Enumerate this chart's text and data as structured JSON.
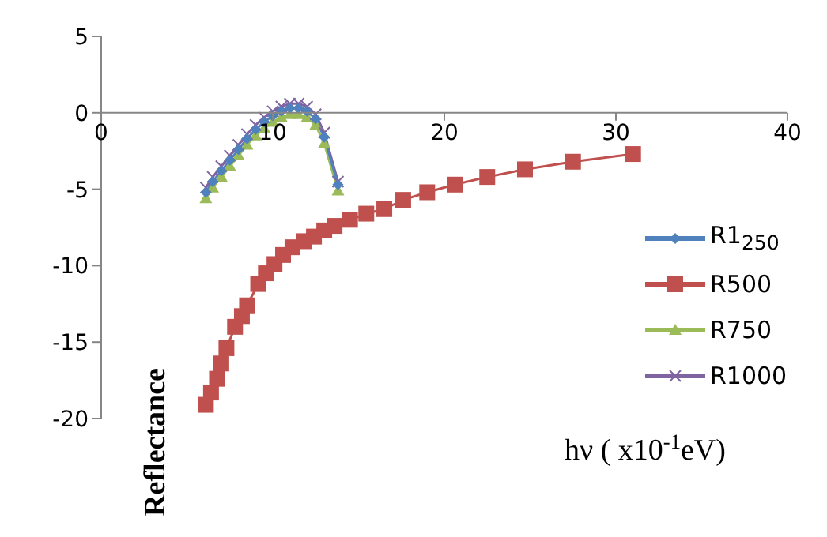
{
  "chart_data": {
    "type": "line",
    "xlabel": "hν ( x10$^{-1}$eV)",
    "ylabel": "Reflectance",
    "xlim": [
      0,
      40
    ],
    "xticks": [
      0,
      10,
      20,
      30,
      40
    ],
    "ylim": [
      -20,
      5
    ],
    "yticks": [
      -20,
      -15,
      -10,
      -5,
      0,
      5
    ],
    "grid": false,
    "legend": "right",
    "line_style": "solid",
    "series": [
      {
        "name": "R1$_{250}$",
        "color": "#4f81bd",
        "marker": "diamond",
        "x": [
          6.1,
          6.5,
          7,
          7.5,
          8,
          8.5,
          9,
          9.5,
          10,
          10.5,
          11,
          11.5,
          12,
          12.5,
          13,
          13.8
        ],
        "values": [
          -5.2,
          -4.5,
          -3.8,
          -3.1,
          -2.4,
          -1.7,
          -1.1,
          -0.6,
          -0.2,
          0.1,
          0.3,
          0.3,
          0.1,
          -0.4,
          -1.6,
          -4.7
        ]
      },
      {
        "name": "R500",
        "color": "#c0504d",
        "marker": "square",
        "x": [
          6.1,
          6.4,
          6.75,
          7.0,
          7.3,
          7.8,
          8.2,
          8.5,
          9.15,
          9.6,
          10.1,
          10.6,
          11.15,
          11.8,
          12.4,
          13.0,
          13.6,
          14.5,
          15.45,
          16.5,
          17.6,
          19.0,
          20.6,
          22.5,
          24.7,
          27.5,
          31.0
        ],
        "values": [
          -19.1,
          -18.3,
          -17.4,
          -16.4,
          -15.4,
          -14.0,
          -13.3,
          -12.6,
          -11.2,
          -10.5,
          -9.9,
          -9.3,
          -8.8,
          -8.4,
          -8.1,
          -7.7,
          -7.4,
          -7.0,
          -6.6,
          -6.3,
          -5.7,
          -5.2,
          -4.7,
          -4.2,
          -3.7,
          -3.2,
          -2.7
        ]
      },
      {
        "name": "R750",
        "color": "#9bbb59",
        "marker": "triangle",
        "x": [
          6.1,
          6.5,
          7,
          7.5,
          8,
          8.5,
          9,
          9.5,
          10,
          10.5,
          11,
          11.5,
          12,
          12.5,
          13,
          13.8
        ],
        "values": [
          -5.6,
          -4.9,
          -4.2,
          -3.5,
          -2.8,
          -2.1,
          -1.5,
          -1.0,
          -0.6,
          -0.3,
          -0.1,
          -0.1,
          -0.3,
          -0.8,
          -2.0,
          -5.1
        ]
      },
      {
        "name": "R1000",
        "color": "#8064a2",
        "marker": "cross",
        "x": [
          6.1,
          6.5,
          7,
          7.5,
          8,
          8.5,
          9,
          9.5,
          10,
          10.5,
          11,
          11.5,
          12,
          12.5,
          13,
          13.8
        ],
        "values": [
          -4.9,
          -4.2,
          -3.5,
          -2.8,
          -2.1,
          -1.4,
          -0.8,
          -0.3,
          0.1,
          0.4,
          0.6,
          0.6,
          0.4,
          -0.1,
          -1.3,
          -4.5
        ]
      }
    ]
  }
}
